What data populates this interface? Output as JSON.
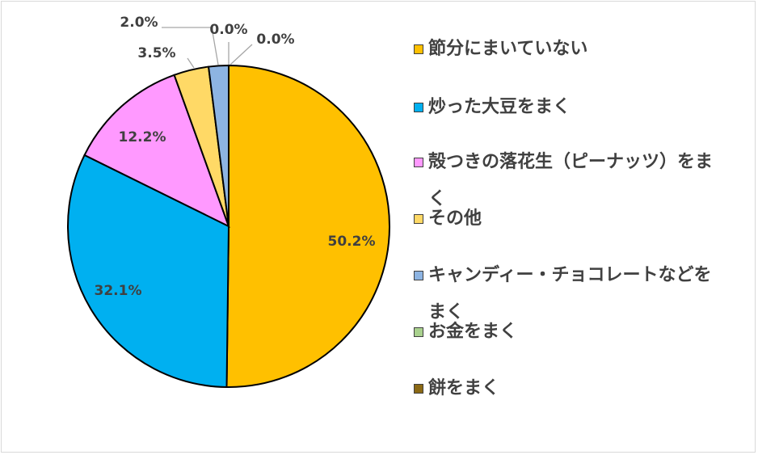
{
  "chart_data": {
    "type": "pie",
    "slices": [
      {
        "label": "節分にまいていない",
        "value": 50.2,
        "value_label": "50.2%",
        "color": "#FFC000"
      },
      {
        "label": "炒った大豆をまく",
        "value": 32.1,
        "value_label": "32.1%",
        "color": "#00B0F0"
      },
      {
        "label": "殻つきの落花生（ピーナッツ）をまく",
        "value": 12.2,
        "value_label": "12.2%",
        "color": "#FF99FF"
      },
      {
        "label": "その他",
        "value": 3.5,
        "value_label": "3.5%",
        "color": "#FFD966"
      },
      {
        "label": "キャンディー・チョコレートなどをまく",
        "value": 2.0,
        "value_label": "2.0%",
        "color": "#8DB4E2"
      },
      {
        "label": "お金をまく",
        "value": 0.0,
        "value_label": "0.0%",
        "color": "#A9D18E"
      },
      {
        "label": "餅をまく",
        "value": 0.0,
        "value_label": "0.0%",
        "color": "#8B6914"
      }
    ],
    "legend_position": "right",
    "start_angle_deg": 0,
    "direction": "clockwise"
  }
}
